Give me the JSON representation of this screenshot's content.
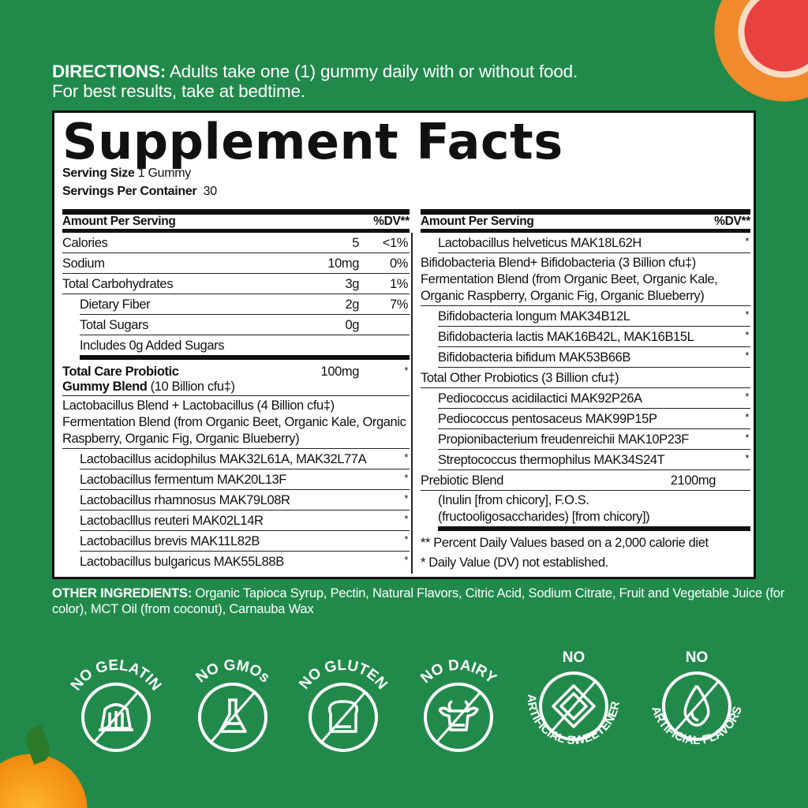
{
  "directions": {
    "label": "DIRECTIONS:",
    "text": " Adults take one (1) gummy daily with or without food.",
    "line2": "For best results, take at bedtime."
  },
  "facts": {
    "title": "Supplement Facts",
    "serving_size_label": "Serving Size",
    "serving_size": "1 Gummy",
    "servings_label": "Servings Per Container",
    "servings": "30",
    "amount_header": "Amount Per Serving",
    "dv_header": "%DV**",
    "left_rows": [
      {
        "name": "Calories",
        "amount": "5",
        "dv": "<1%"
      },
      {
        "name": "Sodium",
        "amount": "10mg",
        "dv": "0%"
      },
      {
        "name": "Total Carbohydrates",
        "amount": "3g",
        "dv": "1%"
      },
      {
        "name": "Dietary Fiber",
        "amount": "2g",
        "dv": "7%"
      },
      {
        "name": "Total Sugars",
        "amount": "0g",
        "dv": ""
      },
      {
        "name": "Includes 0g Added Sugars",
        "amount": "",
        "dv": ""
      }
    ],
    "blend": {
      "line1": "Total Care Probiotic",
      "line2_bold": "Gummy Blend",
      "line2": " (10 Billion cfu‡)",
      "amount": "100mg",
      "dv": "*"
    },
    "lacto_blend": "Lactobacillus Blend + Lactobacillus (4 Billion cfu‡) Fermentation Blend (from Organic Beet, Organic Kale, Organic Raspberry, Organic Fig, Organic Blueberry)",
    "lacto_items": [
      {
        "name": "Lactobacillus acidophilus MAK32L61A, MAK32L77A",
        "dv": "*"
      },
      {
        "name": "Lactobacillus fermentum MAK20L13F",
        "dv": "*"
      },
      {
        "name": "Lactobacillus rhamnosus MAK79L08R",
        "dv": "*"
      },
      {
        "name": "Lactobaclllus reuteri MAK02L14R",
        "dv": "*"
      },
      {
        "name": "Lactobacillus brevis MAK11L82B",
        "dv": "*"
      },
      {
        "name": "Lactobacillus bulgaricus MAK55L88B",
        "dv": "*"
      }
    ],
    "helveticus": {
      "name": "Lactobacillus helveticus MAK18L62H",
      "dv": "*"
    },
    "bifido_blend": "Bifidobacteria Blend+ Bifidobacteria (3 Billion cfu‡) Fermentation Blend (from Organic Beet, Organic Kale, Organic Raspberry, Organic Fig, Organic Blueberry)",
    "bifido_items": [
      {
        "name": "Bifidobacteria longum MAK34B12L",
        "dv": "*"
      },
      {
        "name": "Bifidobacteria lactis MAK16B42L, MAK16B15L",
        "dv": "*"
      },
      {
        "name": "Bifidobacteria bifidum MAK53B66B",
        "dv": "*"
      }
    ],
    "other_probiotics": "Total Other Probiotics (3 Billion cfu‡)",
    "other_items": [
      {
        "name": "Pediococcus acidilactici MAK92P26A",
        "dv": "*"
      },
      {
        "name": "Pediococcus pentosaceus MAK99P15P",
        "dv": "*"
      },
      {
        "name": "Propionibacterium freudenreichii MAK10P23F",
        "dv": "*"
      },
      {
        "name": "Streptococcus thermophilus MAK34S24T",
        "dv": "*"
      }
    ],
    "prebiotic": {
      "name": "Prebiotic Blend",
      "amount": "2100mg",
      "detail": "(Inulin [from chicory], F.O.S. (fructooligosaccharides) [from chicory])"
    },
    "footnote1": "** Percent Daily Values based on a 2,000 calorie diet",
    "footnote2": "* Daily Value (DV) not established."
  },
  "other_ingredients": {
    "label": "OTHER INGREDIENTS:",
    "text": " Organic Tapioca Syrup, Pectin, Natural Flavors, Citric Acid, Sodium Citrate, Fruit and Vegetable Juice (for color), MCT Oil (from coconut), Carnauba Wax"
  },
  "badges": [
    {
      "top": "NO GELATIN",
      "bottom": "",
      "icon": "gelatin-icon"
    },
    {
      "top": "NO GMOs",
      "bottom": "",
      "icon": "flask-icon"
    },
    {
      "top": "NO GLUTEN",
      "bottom": "",
      "icon": "bread-icon"
    },
    {
      "top": "NO DAIRY",
      "bottom": "",
      "icon": "cow-icon"
    },
    {
      "top": "NO",
      "bottom": "ARTIFICIAL SWEETENERS",
      "icon": "sweetener-icon"
    },
    {
      "top": "NO",
      "bottom": "ARTIFICIAL FLAVORS",
      "icon": "drop-icon"
    }
  ],
  "colors": {
    "background": "#218a4b",
    "panel": "#ffffff",
    "text": "#111111"
  }
}
